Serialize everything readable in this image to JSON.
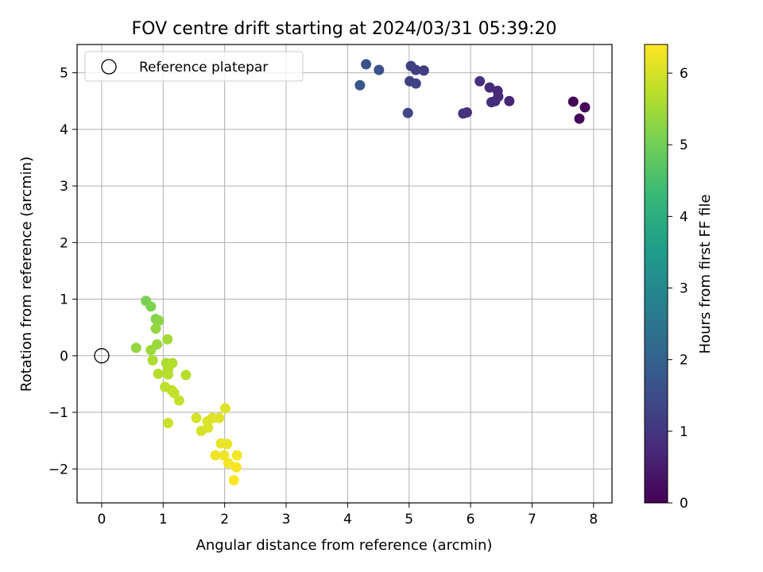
{
  "chart_data": {
    "type": "scatter",
    "title": "FOV centre drift starting at 2024/03/31 05:39:20",
    "xlabel": "Angular distance from reference (arcmin)",
    "ylabel": "Rotation from reference (arcmin)",
    "xlim": [
      -0.4,
      8.3
    ],
    "ylim": [
      -2.6,
      5.5
    ],
    "xticks": [
      0,
      1,
      2,
      3,
      4,
      5,
      6,
      7,
      8
    ],
    "yticks": [
      -2,
      -1,
      0,
      1,
      2,
      3,
      4,
      5
    ],
    "xtick_labels": [
      "0",
      "1",
      "2",
      "3",
      "4",
      "5",
      "6",
      "7",
      "8"
    ],
    "ytick_labels": [
      "−2",
      "−1",
      "0",
      "1",
      "2",
      "3",
      "4",
      "5"
    ],
    "grid": true,
    "legend": {
      "placement": "top-left",
      "entries": [
        "Reference platepar"
      ]
    },
    "reference_point": {
      "label": "Reference platepar",
      "x": 0,
      "y": 0
    },
    "colorbar": {
      "label": "Hours from first FF file",
      "range": [
        0,
        6.4
      ],
      "ticks": [
        0,
        1,
        2,
        3,
        4,
        5,
        6
      ],
      "tick_labels": [
        "0",
        "1",
        "2",
        "3",
        "4",
        "5",
        "6"
      ],
      "colormap": "viridis",
      "colors": [
        "#440154",
        "#482878",
        "#3e4989",
        "#31688e",
        "#26828e",
        "#1f9e89",
        "#35b779",
        "#6ece58",
        "#b5de2b",
        "#fde725"
      ]
    },
    "points": [
      {
        "x": 7.67,
        "y": 4.49,
        "h": 0.05
      },
      {
        "x": 7.86,
        "y": 4.39,
        "h": 0.1
      },
      {
        "x": 7.77,
        "y": 4.19,
        "h": 0.15
      },
      {
        "x": 6.63,
        "y": 4.5,
        "h": 0.7
      },
      {
        "x": 6.44,
        "y": 4.68,
        "h": 0.75
      },
      {
        "x": 6.31,
        "y": 4.74,
        "h": 0.8
      },
      {
        "x": 6.45,
        "y": 4.58,
        "h": 0.8
      },
      {
        "x": 6.4,
        "y": 4.5,
        "h": 0.85
      },
      {
        "x": 6.34,
        "y": 4.48,
        "h": 0.85
      },
      {
        "x": 6.15,
        "y": 4.85,
        "h": 0.9
      },
      {
        "x": 5.94,
        "y": 4.3,
        "h": 0.95
      },
      {
        "x": 5.88,
        "y": 4.28,
        "h": 0.95
      },
      {
        "x": 5.24,
        "y": 5.04,
        "h": 1.15
      },
      {
        "x": 5.11,
        "y": 5.05,
        "h": 1.2
      },
      {
        "x": 5.03,
        "y": 5.12,
        "h": 1.25
      },
      {
        "x": 5.01,
        "y": 4.85,
        "h": 1.25
      },
      {
        "x": 5.11,
        "y": 4.81,
        "h": 1.3
      },
      {
        "x": 4.98,
        "y": 4.29,
        "h": 1.35
      },
      {
        "x": 4.51,
        "y": 5.05,
        "h": 1.6
      },
      {
        "x": 4.3,
        "y": 5.15,
        "h": 1.65
      },
      {
        "x": 4.2,
        "y": 4.78,
        "h": 1.75
      },
      {
        "x": 0.72,
        "y": 0.97,
        "h": 5.1
      },
      {
        "x": 0.8,
        "y": 0.87,
        "h": 5.15
      },
      {
        "x": 0.88,
        "y": 0.65,
        "h": 5.2
      },
      {
        "x": 0.93,
        "y": 0.62,
        "h": 5.3
      },
      {
        "x": 0.88,
        "y": 0.48,
        "h": 5.35
      },
      {
        "x": 0.56,
        "y": 0.14,
        "h": 5.35
      },
      {
        "x": 0.9,
        "y": 0.2,
        "h": 5.4
      },
      {
        "x": 0.8,
        "y": 0.1,
        "h": 5.45
      },
      {
        "x": 1.07,
        "y": 0.29,
        "h": 5.5
      },
      {
        "x": 0.83,
        "y": -0.08,
        "h": 5.6
      },
      {
        "x": 1.05,
        "y": -0.13,
        "h": 5.6
      },
      {
        "x": 1.15,
        "y": -0.13,
        "h": 5.65
      },
      {
        "x": 1.08,
        "y": -0.24,
        "h": 5.65
      },
      {
        "x": 0.92,
        "y": -0.32,
        "h": 5.7
      },
      {
        "x": 1.08,
        "y": -0.33,
        "h": 5.7
      },
      {
        "x": 1.37,
        "y": -0.34,
        "h": 5.7
      },
      {
        "x": 1.03,
        "y": -0.55,
        "h": 5.8
      },
      {
        "x": 1.14,
        "y": -0.61,
        "h": 5.8
      },
      {
        "x": 1.18,
        "y": -0.66,
        "h": 5.85
      },
      {
        "x": 1.26,
        "y": -0.79,
        "h": 5.85
      },
      {
        "x": 1.08,
        "y": -1.19,
        "h": 5.9
      },
      {
        "x": 1.54,
        "y": -1.1,
        "h": 6.0
      },
      {
        "x": 1.62,
        "y": -1.33,
        "h": 6.0
      },
      {
        "x": 1.72,
        "y": -1.16,
        "h": 6.05
      },
      {
        "x": 1.73,
        "y": -1.27,
        "h": 6.05
      },
      {
        "x": 1.8,
        "y": -1.1,
        "h": 6.1
      },
      {
        "x": 1.91,
        "y": -1.1,
        "h": 6.1
      },
      {
        "x": 2.01,
        "y": -0.93,
        "h": 6.1
      },
      {
        "x": 1.94,
        "y": -1.55,
        "h": 6.2
      },
      {
        "x": 2.04,
        "y": -1.56,
        "h": 6.2
      },
      {
        "x": 1.85,
        "y": -1.76,
        "h": 6.25
      },
      {
        "x": 1.99,
        "y": -1.76,
        "h": 6.25
      },
      {
        "x": 2.06,
        "y": -1.9,
        "h": 6.3
      },
      {
        "x": 2.2,
        "y": -1.76,
        "h": 6.3
      },
      {
        "x": 2.19,
        "y": -1.97,
        "h": 6.35
      },
      {
        "x": 2.15,
        "y": -2.2,
        "h": 6.4
      }
    ]
  }
}
